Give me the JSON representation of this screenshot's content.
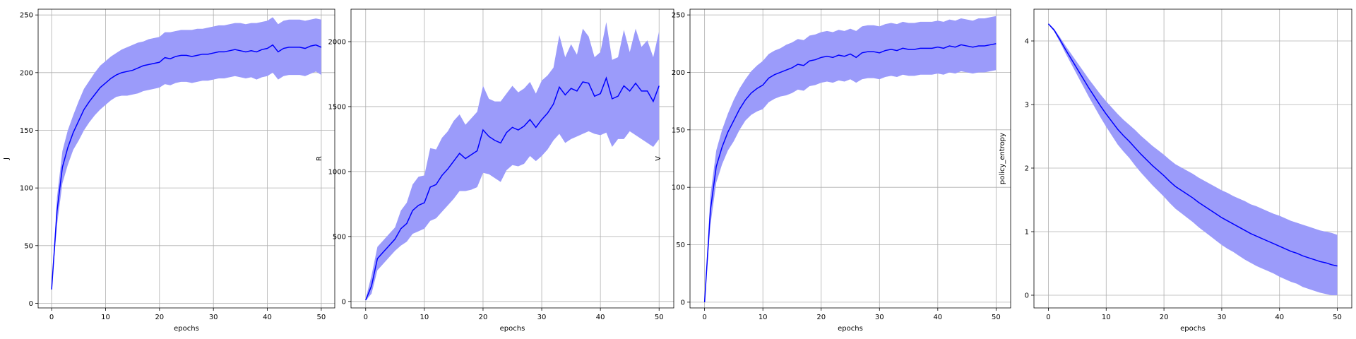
{
  "colors": {
    "line": "#0000ff",
    "band": "#9b9bfa",
    "grid": "#b0b0b0",
    "axes": "#000000",
    "background": "#ffffff"
  },
  "chart_data": [
    {
      "type": "line",
      "title": "",
      "xlabel": "epochs",
      "ylabel": "J",
      "xlim": [
        -2.5,
        52.5
      ],
      "ylim": [
        -4,
        255
      ],
      "xticks": [
        0,
        10,
        20,
        30,
        40,
        50
      ],
      "yticks": [
        0,
        50,
        100,
        150,
        200,
        250
      ],
      "grid": true,
      "x": [
        0,
        1,
        2,
        3,
        4,
        5,
        6,
        7,
        8,
        9,
        10,
        11,
        12,
        13,
        14,
        15,
        16,
        17,
        18,
        19,
        20,
        21,
        22,
        23,
        24,
        25,
        26,
        27,
        28,
        29,
        30,
        31,
        32,
        33,
        34,
        35,
        36,
        37,
        38,
        39,
        40,
        41,
        42,
        43,
        44,
        45,
        46,
        47,
        48,
        49,
        50
      ],
      "series": [
        {
          "mean": [
            12,
            80,
            118,
            135,
            148,
            158,
            168,
            175,
            181,
            187,
            191,
            195,
            198,
            200,
            201,
            202,
            204,
            206,
            207,
            208,
            209,
            213,
            212,
            214,
            215,
            215,
            214,
            215,
            216,
            216,
            217,
            218,
            218,
            219,
            220,
            219,
            218,
            219,
            218,
            220,
            221,
            224,
            218,
            221,
            222,
            222,
            222,
            221,
            223,
            224,
            222
          ],
          "upper": [
            12,
            92,
            132,
            150,
            163,
            175,
            186,
            193,
            200,
            206,
            210,
            214,
            217,
            220,
            222,
            224,
            226,
            227,
            229,
            230,
            231,
            235,
            235,
            236,
            237,
            237,
            237,
            238,
            238,
            239,
            240,
            241,
            241,
            242,
            243,
            243,
            242,
            243,
            243,
            244,
            245,
            248,
            242,
            245,
            246,
            246,
            246,
            245,
            246,
            247,
            246
          ],
          "lower": [
            12,
            68,
            104,
            120,
            133,
            141,
            150,
            157,
            163,
            168,
            172,
            176,
            179,
            180,
            180,
            181,
            182,
            184,
            185,
            186,
            187,
            190,
            189,
            191,
            192,
            192,
            191,
            192,
            193,
            193,
            194,
            195,
            195,
            196,
            197,
            196,
            195,
            196,
            194,
            196,
            197,
            200,
            194,
            197,
            198,
            198,
            198,
            197,
            199,
            201,
            198
          ]
        }
      ]
    },
    {
      "type": "line",
      "title": "",
      "xlabel": "epochs",
      "ylabel": "R",
      "xlim": [
        -2.5,
        52.5
      ],
      "ylim": [
        -50,
        2250
      ],
      "xticks": [
        0,
        10,
        20,
        30,
        40,
        50
      ],
      "yticks": [
        0,
        500,
        1000,
        1500,
        2000
      ],
      "grid": true,
      "x": [
        0,
        1,
        2,
        3,
        4,
        5,
        6,
        7,
        8,
        9,
        10,
        11,
        12,
        13,
        14,
        15,
        16,
        17,
        18,
        19,
        20,
        21,
        22,
        23,
        24,
        25,
        26,
        27,
        28,
        29,
        30,
        31,
        32,
        33,
        34,
        35,
        36,
        37,
        38,
        39,
        40,
        41,
        42,
        43,
        44,
        45,
        46,
        47,
        48,
        49,
        50
      ],
      "series": [
        {
          "mean": [
            10,
            120,
            330,
            380,
            430,
            480,
            560,
            600,
            700,
            740,
            760,
            880,
            900,
            970,
            1020,
            1080,
            1140,
            1100,
            1130,
            1160,
            1320,
            1270,
            1240,
            1220,
            1300,
            1340,
            1320,
            1350,
            1400,
            1340,
            1400,
            1450,
            1520,
            1650,
            1590,
            1640,
            1620,
            1690,
            1680,
            1580,
            1600,
            1720,
            1560,
            1580,
            1660,
            1620,
            1680,
            1620,
            1620,
            1540,
            1660
          ],
          "upper": [
            20,
            200,
            420,
            470,
            520,
            570,
            700,
            760,
            900,
            960,
            970,
            1180,
            1170,
            1260,
            1310,
            1390,
            1440,
            1360,
            1410,
            1460,
            1660,
            1560,
            1540,
            1540,
            1600,
            1660,
            1610,
            1640,
            1690,
            1600,
            1700,
            1740,
            1800,
            2050,
            1880,
            1980,
            1900,
            2100,
            2040,
            1880,
            1920,
            2150,
            1860,
            1880,
            2090,
            1920,
            2100,
            1960,
            2010,
            1880,
            2080
          ],
          "lower": [
            5,
            60,
            240,
            290,
            340,
            390,
            430,
            460,
            520,
            540,
            560,
            620,
            640,
            690,
            740,
            790,
            850,
            850,
            860,
            880,
            990,
            980,
            950,
            920,
            1010,
            1050,
            1040,
            1060,
            1120,
            1080,
            1120,
            1170,
            1240,
            1290,
            1220,
            1250,
            1270,
            1290,
            1310,
            1290,
            1280,
            1300,
            1190,
            1250,
            1250,
            1310,
            1280,
            1250,
            1220,
            1190,
            1250
          ]
        }
      ]
    },
    {
      "type": "line",
      "title": "",
      "xlabel": "epochs",
      "ylabel": "V",
      "xlim": [
        -2.5,
        52.5
      ],
      "ylim": [
        -5,
        255
      ],
      "xticks": [
        0,
        10,
        20,
        30,
        40,
        50
      ],
      "yticks": [
        0,
        50,
        100,
        150,
        200,
        250
      ],
      "grid": true,
      "x": [
        0,
        1,
        2,
        3,
        4,
        5,
        6,
        7,
        8,
        9,
        10,
        11,
        12,
        13,
        14,
        15,
        16,
        17,
        18,
        19,
        20,
        21,
        22,
        23,
        24,
        25,
        26,
        27,
        28,
        29,
        30,
        31,
        32,
        33,
        34,
        35,
        36,
        37,
        38,
        39,
        40,
        41,
        42,
        43,
        44,
        45,
        46,
        47,
        48,
        49,
        50
      ],
      "series": [
        {
          "mean": [
            0,
            80,
            118,
            135,
            148,
            158,
            168,
            176,
            182,
            186,
            189,
            195,
            198,
            200,
            202,
            204,
            207,
            206,
            210,
            211,
            213,
            214,
            213,
            215,
            214,
            216,
            213,
            217,
            218,
            218,
            217,
            219,
            220,
            219,
            221,
            220,
            220,
            221,
            221,
            221,
            222,
            221,
            223,
            222,
            224,
            223,
            222,
            223,
            223,
            224,
            225
          ],
          "upper": [
            0,
            93,
            132,
            150,
            164,
            176,
            186,
            194,
            201,
            206,
            210,
            216,
            219,
            221,
            224,
            226,
            229,
            228,
            232,
            233,
            235,
            236,
            235,
            237,
            236,
            238,
            236,
            240,
            241,
            241,
            240,
            242,
            243,
            242,
            244,
            243,
            243,
            244,
            244,
            244,
            245,
            244,
            246,
            245,
            247,
            246,
            245,
            247,
            247,
            248,
            249
          ],
          "lower": [
            0,
            67,
            104,
            120,
            132,
            140,
            150,
            158,
            163,
            166,
            168,
            174,
            177,
            179,
            180,
            182,
            185,
            184,
            188,
            189,
            191,
            192,
            191,
            193,
            192,
            194,
            191,
            194,
            195,
            195,
            194,
            196,
            197,
            196,
            198,
            197,
            197,
            198,
            198,
            198,
            199,
            198,
            200,
            199,
            201,
            200,
            199,
            200,
            200,
            201,
            202
          ]
        }
      ]
    },
    {
      "type": "line",
      "title": "",
      "xlabel": "epochs",
      "ylabel": "policy_entropy",
      "xlim": [
        -2.5,
        52.5
      ],
      "ylim": [
        -0.2,
        4.5
      ],
      "xticks": [
        0,
        10,
        20,
        30,
        40,
        50
      ],
      "yticks": [
        0,
        1,
        2,
        3,
        4
      ],
      "grid": true,
      "x": [
        0,
        1,
        2,
        3,
        4,
        5,
        6,
        7,
        8,
        9,
        10,
        11,
        12,
        13,
        14,
        15,
        16,
        17,
        18,
        19,
        20,
        21,
        22,
        23,
        24,
        25,
        26,
        27,
        28,
        29,
        30,
        31,
        32,
        33,
        34,
        35,
        36,
        37,
        38,
        39,
        40,
        41,
        42,
        43,
        44,
        45,
        46,
        47,
        48,
        49,
        50
      ],
      "series": [
        {
          "mean": [
            4.27,
            4.17,
            4.02,
            3.86,
            3.71,
            3.56,
            3.41,
            3.26,
            3.12,
            2.98,
            2.85,
            2.73,
            2.61,
            2.51,
            2.42,
            2.32,
            2.22,
            2.13,
            2.04,
            1.96,
            1.88,
            1.79,
            1.71,
            1.65,
            1.59,
            1.53,
            1.46,
            1.4,
            1.34,
            1.28,
            1.22,
            1.17,
            1.12,
            1.07,
            1.02,
            0.97,
            0.93,
            0.89,
            0.85,
            0.81,
            0.77,
            0.73,
            0.69,
            0.66,
            0.62,
            0.59,
            0.56,
            0.53,
            0.51,
            0.48,
            0.46
          ],
          "upper": [
            4.28,
            4.19,
            4.06,
            3.92,
            3.79,
            3.66,
            3.53,
            3.4,
            3.28,
            3.16,
            3.05,
            2.95,
            2.85,
            2.76,
            2.68,
            2.6,
            2.51,
            2.43,
            2.35,
            2.28,
            2.21,
            2.13,
            2.06,
            2.01,
            1.96,
            1.91,
            1.85,
            1.8,
            1.75,
            1.7,
            1.65,
            1.61,
            1.56,
            1.52,
            1.48,
            1.43,
            1.4,
            1.36,
            1.32,
            1.28,
            1.25,
            1.21,
            1.17,
            1.14,
            1.11,
            1.08,
            1.05,
            1.02,
            1.0,
            0.98,
            0.95
          ],
          "lower": [
            4.26,
            4.15,
            3.98,
            3.8,
            3.63,
            3.46,
            3.29,
            3.12,
            2.96,
            2.8,
            2.65,
            2.51,
            2.37,
            2.26,
            2.16,
            2.04,
            1.93,
            1.83,
            1.73,
            1.64,
            1.55,
            1.45,
            1.36,
            1.29,
            1.22,
            1.15,
            1.07,
            1.0,
            0.93,
            0.86,
            0.79,
            0.73,
            0.68,
            0.62,
            0.56,
            0.51,
            0.46,
            0.42,
            0.38,
            0.34,
            0.29,
            0.25,
            0.21,
            0.18,
            0.13,
            0.1,
            0.07,
            0.04,
            0.02,
            0.0,
            0.0
          ]
        }
      ]
    }
  ]
}
